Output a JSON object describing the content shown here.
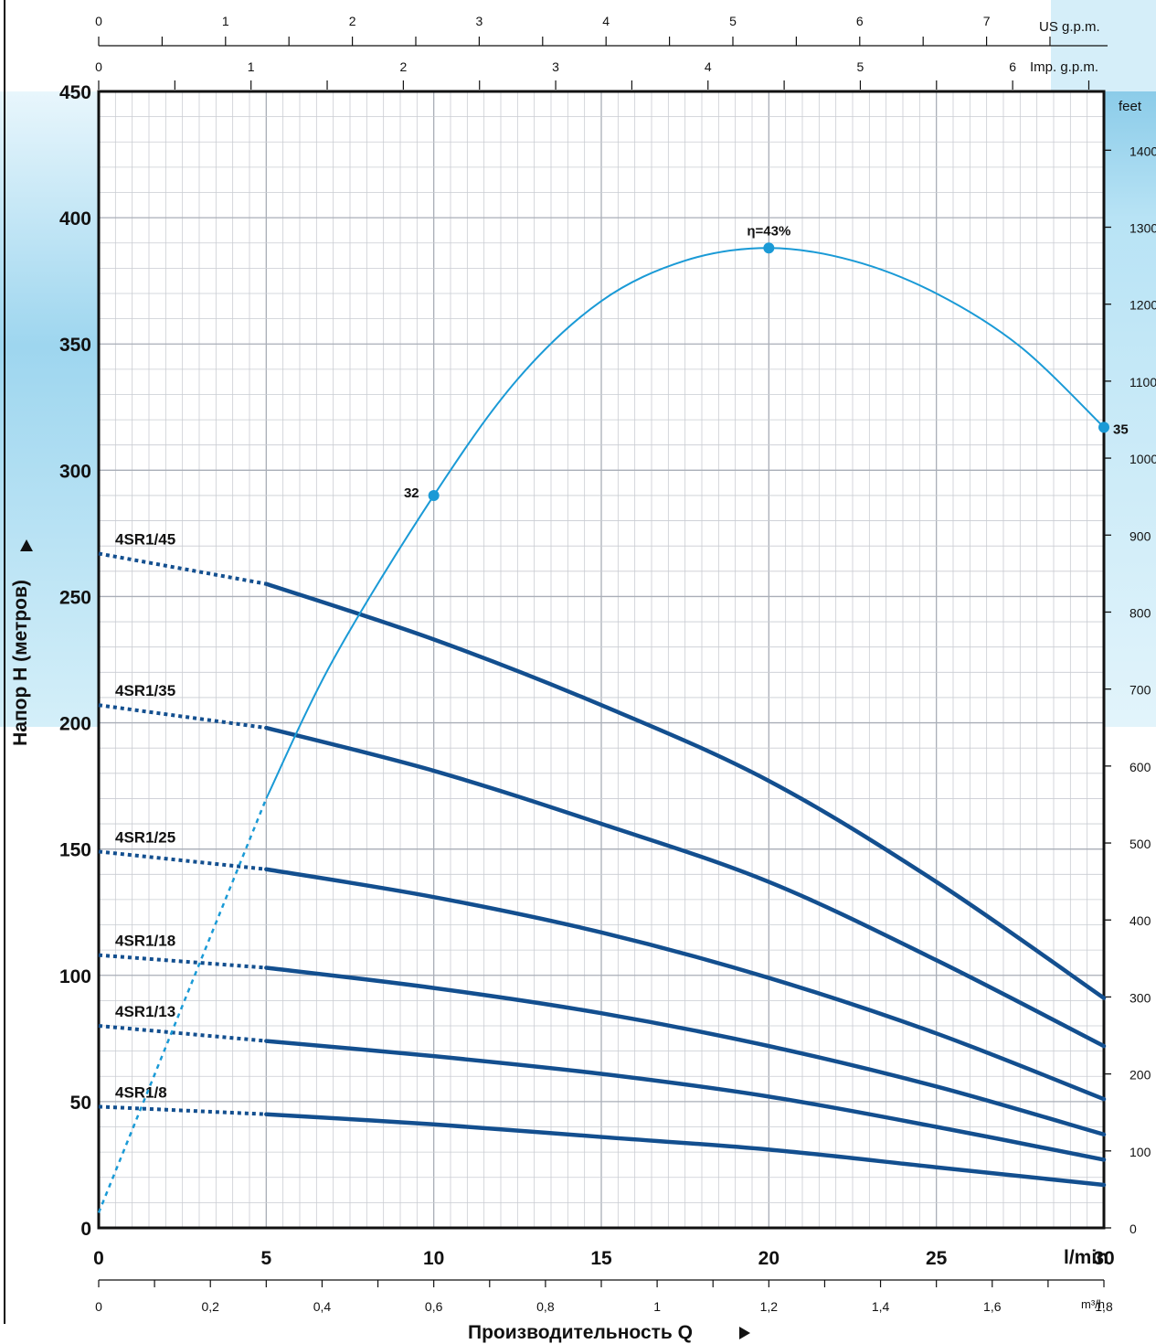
{
  "colors": {
    "curve": "#134f8f",
    "efficiency": "#1a9ad6",
    "grid": "#c9ccd2",
    "frame": "#111111",
    "water_bg": "#bfe6f6"
  },
  "chart_data": {
    "type": "line",
    "title": "",
    "xlabel": "Производительность Q",
    "ylabel": "Напор H (метров)",
    "x_unit_label": "l/min",
    "xlim": [
      0,
      30
    ],
    "ylim": [
      0,
      450
    ],
    "grid": true,
    "x_ticks": [
      "0",
      "5",
      "10",
      "15",
      "20",
      "25",
      "30"
    ],
    "y_ticks": [
      "0",
      "50",
      "100",
      "150",
      "200",
      "250",
      "300",
      "350",
      "400",
      "450"
    ],
    "secondary_axes": {
      "bottom_m3h": {
        "label": "m³/h",
        "ticks": [
          "0",
          "0,2",
          "0,4",
          "0,6",
          "0,8",
          "1",
          "1,2",
          "1,4",
          "1,6",
          "1,8"
        ],
        "values": [
          0,
          0.2,
          0.4,
          0.6,
          0.8,
          1.0,
          1.2,
          1.4,
          1.6,
          1.8
        ]
      },
      "top_us_gpm": {
        "label": "US g.p.m.",
        "ticks": [
          "0",
          "1",
          "2",
          "3",
          "4",
          "5",
          "6",
          "7"
        ],
        "values": [
          0,
          1,
          2,
          3,
          4,
          5,
          6,
          7
        ]
      },
      "top_imp_gpm": {
        "label": "Imp. g.p.m.",
        "ticks": [
          "0",
          "1",
          "2",
          "3",
          "4",
          "5",
          "6"
        ],
        "values": [
          0,
          1,
          2,
          3,
          4,
          5,
          6
        ]
      },
      "right_feet": {
        "label": "feet",
        "ticks": [
          "0",
          "100",
          "200",
          "300",
          "400",
          "500",
          "600",
          "700",
          "800",
          "900",
          "1000",
          "1100",
          "1200",
          "1300",
          "1400"
        ],
        "values": [
          0,
          100,
          200,
          300,
          400,
          500,
          600,
          700,
          800,
          900,
          1000,
          1100,
          1200,
          1300,
          1400
        ]
      }
    },
    "series": [
      {
        "name": "4SR1/45",
        "dashed": [
          [
            0,
            267
          ],
          [
            5,
            255
          ]
        ],
        "solid": [
          [
            5,
            255
          ],
          [
            10,
            233
          ],
          [
            15,
            207
          ],
          [
            20,
            177
          ],
          [
            25,
            137
          ],
          [
            30,
            91
          ]
        ]
      },
      {
        "name": "4SR1/35",
        "dashed": [
          [
            0,
            207
          ],
          [
            5,
            198
          ]
        ],
        "solid": [
          [
            5,
            198
          ],
          [
            10,
            181
          ],
          [
            15,
            160
          ],
          [
            20,
            137
          ],
          [
            25,
            106
          ],
          [
            30,
            72
          ]
        ]
      },
      {
        "name": "4SR1/25",
        "dashed": [
          [
            0,
            149
          ],
          [
            5,
            142
          ]
        ],
        "solid": [
          [
            5,
            142
          ],
          [
            10,
            131
          ],
          [
            15,
            117
          ],
          [
            20,
            99
          ],
          [
            25,
            77
          ],
          [
            30,
            51
          ]
        ]
      },
      {
        "name": "4SR1/18",
        "dashed": [
          [
            0,
            108
          ],
          [
            5,
            103
          ]
        ],
        "solid": [
          [
            5,
            103
          ],
          [
            10,
            95
          ],
          [
            15,
            85
          ],
          [
            20,
            72
          ],
          [
            25,
            56
          ],
          [
            30,
            37
          ]
        ]
      },
      {
        "name": "4SR1/13",
        "dashed": [
          [
            0,
            80
          ],
          [
            5,
            74
          ]
        ],
        "solid": [
          [
            5,
            74
          ],
          [
            10,
            68
          ],
          [
            15,
            61
          ],
          [
            20,
            52
          ],
          [
            25,
            40
          ],
          [
            30,
            27
          ]
        ]
      },
      {
        "name": "4SR1/8",
        "dashed": [
          [
            0,
            48
          ],
          [
            5,
            45
          ]
        ],
        "solid": [
          [
            5,
            45
          ],
          [
            10,
            41
          ],
          [
            15,
            36
          ],
          [
            20,
            31
          ],
          [
            25,
            24
          ],
          [
            30,
            17
          ]
        ]
      }
    ],
    "efficiency_curve": {
      "dashed": [
        [
          0,
          6
        ],
        [
          5,
          170
        ]
      ],
      "solid": [
        [
          5,
          170
        ],
        [
          7,
          225
        ],
        [
          10,
          290
        ],
        [
          12.5,
          336
        ],
        [
          15,
          367
        ],
        [
          17.5,
          383
        ],
        [
          20,
          388
        ],
        [
          22.5,
          383
        ],
        [
          25,
          370
        ],
        [
          27.5,
          349
        ],
        [
          30,
          317
        ]
      ],
      "markers": [
        {
          "x": 10,
          "y": 290,
          "label": "32"
        },
        {
          "x": 20,
          "y": 388,
          "label": "η=43%"
        },
        {
          "x": 30,
          "y": 317,
          "label": "35"
        }
      ]
    }
  }
}
